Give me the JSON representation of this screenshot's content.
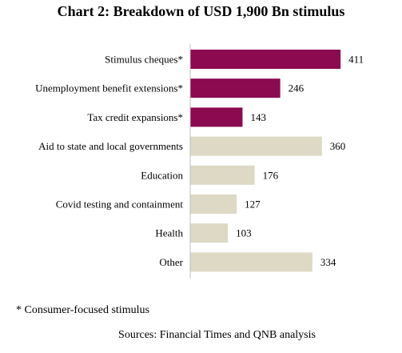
{
  "chart_data": {
    "type": "bar",
    "orientation": "horizontal",
    "title": "Chart 2: Breakdown of USD 1,900 Bn stimulus",
    "categories": [
      "Stimulus cheques*",
      "Unemployment benefit extensions*",
      "Tax credit expansions*",
      "Aid to state and local governments",
      "Education",
      "Covid testing and containment",
      "Health",
      "Other"
    ],
    "values": [
      411,
      246,
      143,
      360,
      176,
      127,
      103,
      334
    ],
    "consumer_focused": [
      true,
      true,
      true,
      false,
      false,
      false,
      false,
      false
    ],
    "colors": {
      "consumer_focused": "#8b0a50",
      "other": "#ddd9c4",
      "axis": "#bfbfbf"
    },
    "xlim": [
      0,
      450
    ],
    "grid": false,
    "legend": "none"
  },
  "footnote": "* Consumer-focused stimulus",
  "source": "Sources: Financial Times and QNB analysis"
}
